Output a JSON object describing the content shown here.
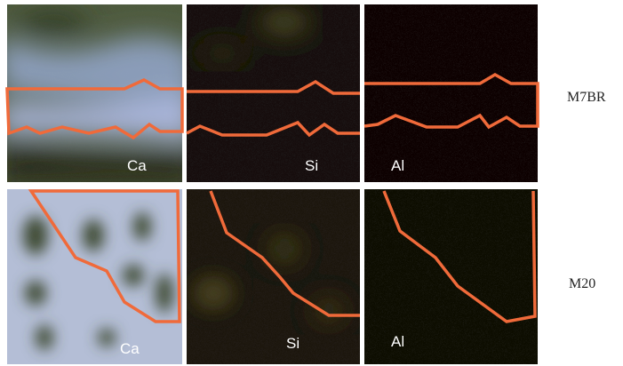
{
  "rows": [
    {
      "label": "M7BR",
      "panels": [
        "Ca",
        "Si",
        "Al"
      ]
    },
    {
      "label": "M20",
      "panels": [
        "Ca",
        "Si",
        "Al"
      ]
    }
  ]
}
